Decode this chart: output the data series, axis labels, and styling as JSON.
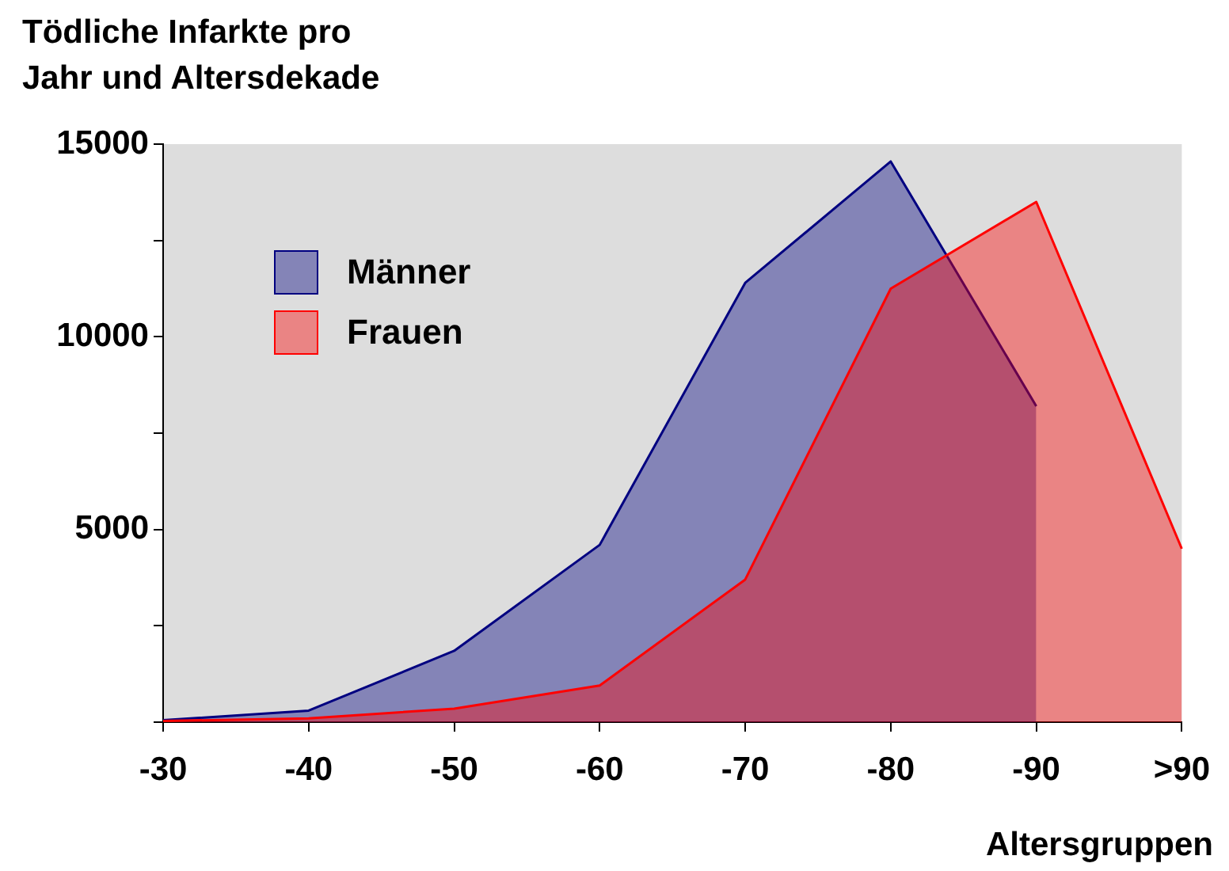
{
  "chart_data": {
    "type": "area",
    "title": "Tödliche Infarkte pro\nJahr und Altersdekade",
    "xlabel": "Altersgruppen",
    "categories": [
      "-30",
      "-40",
      "-50",
      "-60",
      "-70",
      "-80",
      "-90",
      ">90"
    ],
    "series": [
      {
        "name": "Männer",
        "color": "#000080",
        "values": [
          50,
          300,
          1850,
          4600,
          11400,
          14550,
          8200,
          null
        ]
      },
      {
        "name": "Frauen",
        "color": "#ff0000",
        "values": [
          30,
          100,
          350,
          950,
          3700,
          11250,
          13500,
          4500
        ]
      }
    ],
    "ylim": [
      0,
      15000
    ],
    "yticks": [
      {
        "value": 0,
        "label": null
      },
      {
        "value": 2500,
        "label": null
      },
      5000,
      {
        "value": 7500,
        "label": null
      },
      10000,
      {
        "value": 12500,
        "label": null
      },
      15000
    ],
    "legend": "top left"
  }
}
